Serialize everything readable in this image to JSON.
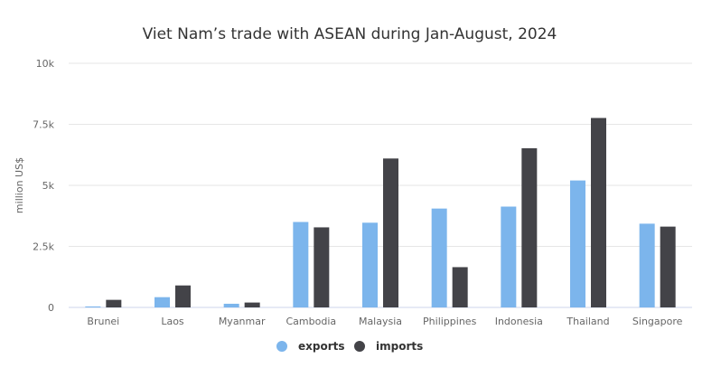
{
  "chart_data": {
    "type": "bar",
    "title": "Viet Nam’s trade with ASEAN during Jan-August, 2024",
    "ylabel": "million US$",
    "xlabel": "",
    "ylim": [
      0,
      10000
    ],
    "yticks": [
      0,
      2500,
      5000,
      7500,
      10000
    ],
    "ytick_labels": [
      "0",
      "2.5k",
      "5k",
      "7.5k",
      "10k"
    ],
    "grid": true,
    "legend_position": "bottom",
    "categories": [
      "Brunei",
      "Laos",
      "Myanmar",
      "Cambodia",
      "Malaysia",
      "Philippines",
      "Indonesia",
      "Thailand",
      "Singapore"
    ],
    "series": [
      {
        "name": "exports",
        "color": "#7cb5ec",
        "values": [
          40,
          420,
          150,
          3500,
          3470,
          4050,
          4130,
          5200,
          3430
        ]
      },
      {
        "name": "imports",
        "color": "#434348",
        "values": [
          310,
          900,
          200,
          3280,
          6100,
          1650,
          6520,
          7760,
          3310
        ]
      }
    ]
  }
}
